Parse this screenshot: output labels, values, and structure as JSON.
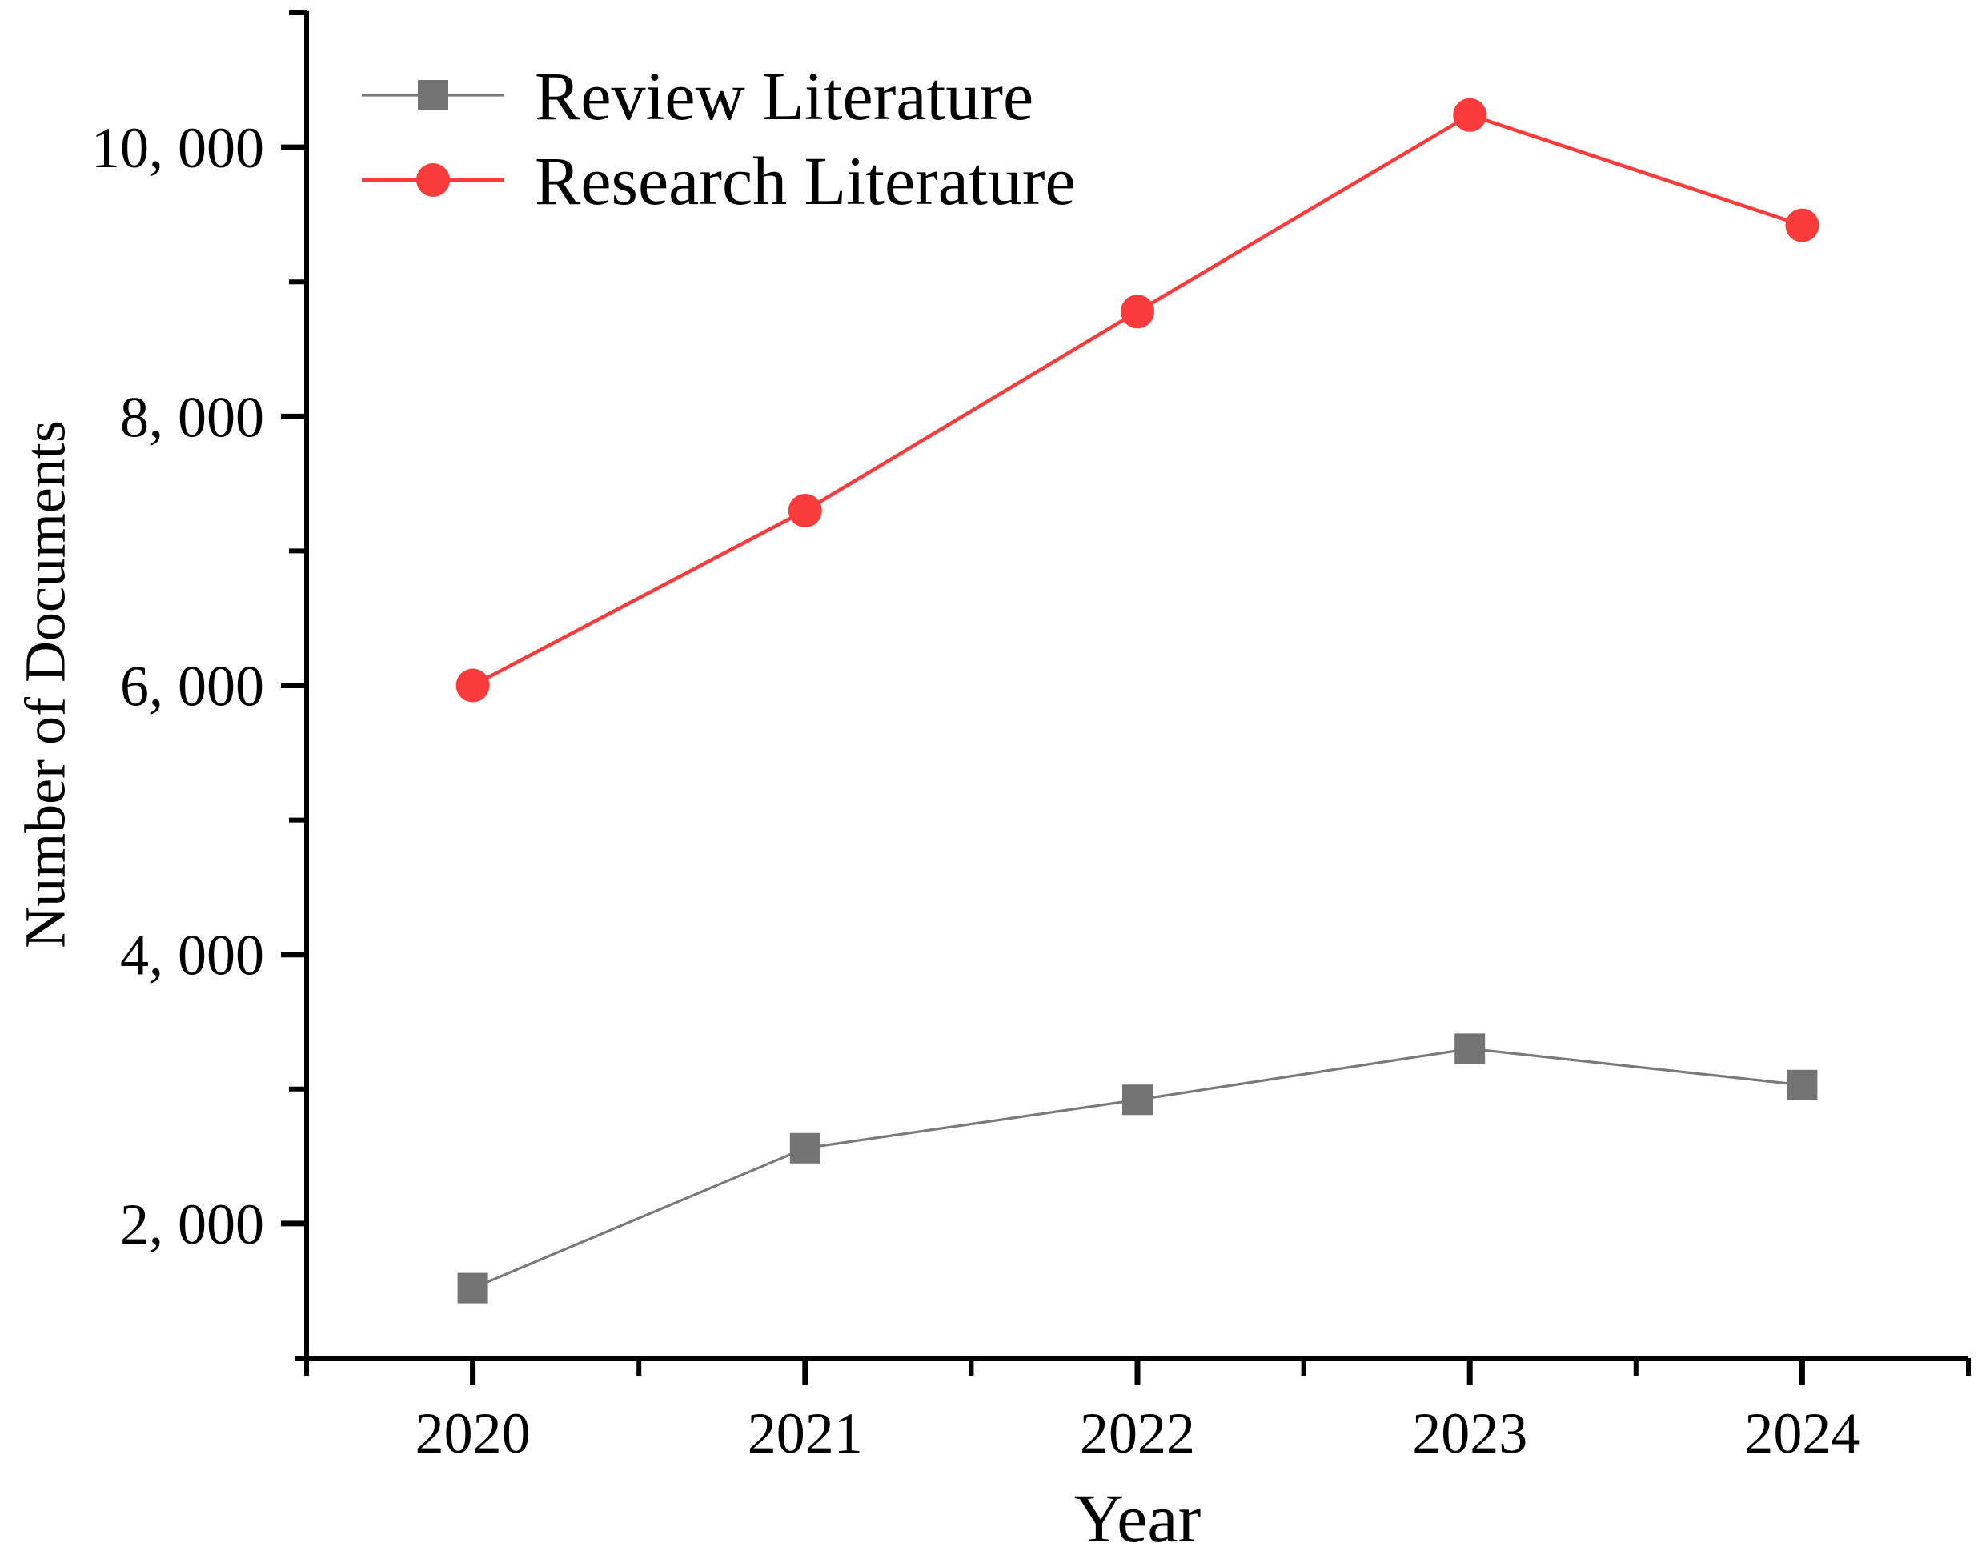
{
  "page": {
    "background_color": "#ffffff",
    "text_color": "#000000"
  },
  "chart_data": {
    "type": "line",
    "title": "",
    "xlabel": "Year",
    "ylabel": "Number of Documents",
    "x": [
      2020,
      2021,
      2022,
      2023,
      2024
    ],
    "x_tick_labels": [
      "2020",
      "2021",
      "2022",
      "2023",
      "2024"
    ],
    "series": [
      {
        "name": "Review Literature",
        "marker": "square",
        "marker_color": "#737373",
        "line_color": "#7a7a7a",
        "line_width": 3.2,
        "values": [
          1520,
          2560,
          2920,
          3300,
          3030
        ]
      },
      {
        "name": "Research Literature",
        "marker": "circle",
        "marker_color": "#fa3b3b",
        "line_color": "#fa3b3b",
        "line_width": 4.5,
        "values": [
          6000,
          7300,
          8780,
          10240,
          9420
        ]
      }
    ],
    "xlim": [
      2019.5,
      2024.5
    ],
    "ylim": [
      1000,
      11000
    ],
    "yticks": [
      {
        "value": 2000,
        "label": "2, 000"
      },
      {
        "value": 4000,
        "label": "4, 000"
      },
      {
        "value": 6000,
        "label": "6, 000"
      },
      {
        "value": 8000,
        "label": "8, 000"
      },
      {
        "value": 10000,
        "label": "10, 000"
      }
    ],
    "y_minor_ticks": [
      3000,
      5000,
      7000,
      9000,
      11000
    ],
    "x_minor_ticks": [
      2019.5,
      2020.5,
      2021.5,
      2022.5,
      2023.5,
      2024.5
    ],
    "grid": false,
    "legend_position": "top-left",
    "axis_color": "#000000"
  }
}
